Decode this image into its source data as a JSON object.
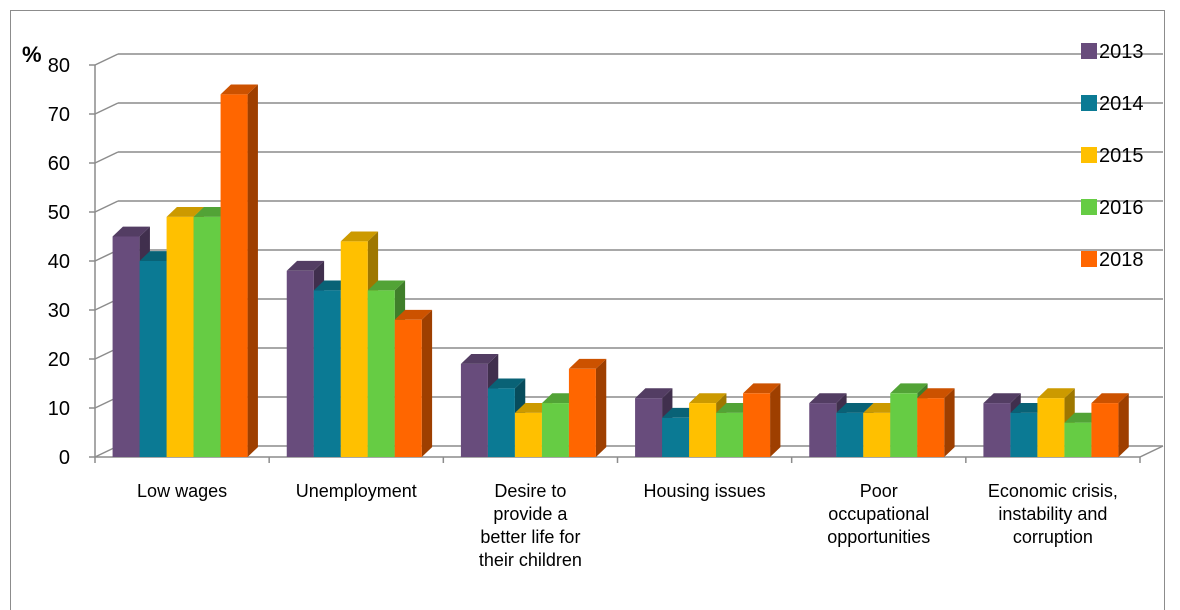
{
  "chart_data": {
    "type": "bar",
    "style": "3d-clustered-column",
    "ylabel": "%",
    "ylim": [
      0,
      80
    ],
    "ytick_step": 10,
    "grid": true,
    "legend_position": "right",
    "categories": [
      [
        "Low wages"
      ],
      [
        "Unemployment"
      ],
      [
        "Desire to",
        "provide a",
        "better life for",
        "their children"
      ],
      [
        "Housing issues"
      ],
      [
        "Poor",
        "occupational",
        "opportunities"
      ],
      [
        "Economic crisis,",
        "instability and",
        "corruption"
      ]
    ],
    "series": [
      {
        "name": "2013",
        "color": "#684c7c",
        "values": [
          45,
          38,
          19,
          12,
          11,
          11
        ]
      },
      {
        "name": "2014",
        "color": "#0b7a94",
        "values": [
          40,
          34,
          14,
          8,
          9,
          9
        ]
      },
      {
        "name": "2015",
        "color": "#ffc000",
        "values": [
          49,
          44,
          9,
          11,
          9,
          12
        ]
      },
      {
        "name": "2016",
        "color": "#66cc44",
        "values": [
          49,
          34,
          11,
          9,
          13,
          7
        ]
      },
      {
        "name": "2018",
        "color": "#ff6600",
        "values": [
          74,
          28,
          18,
          13,
          12,
          11
        ]
      }
    ]
  }
}
